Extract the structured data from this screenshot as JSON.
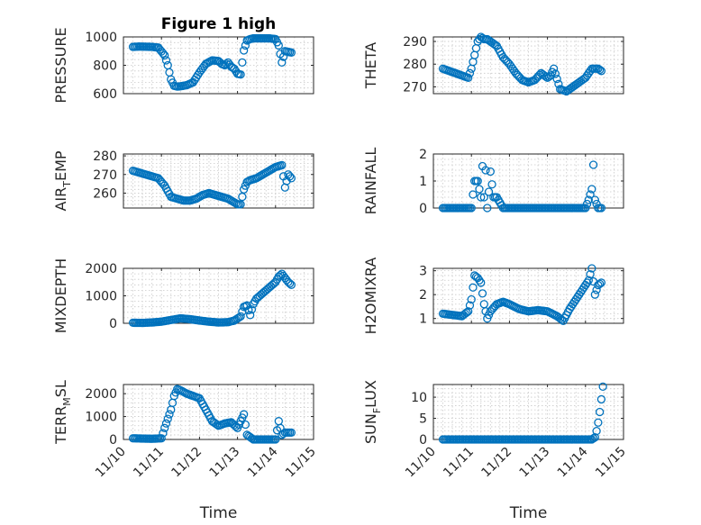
{
  "colors": {
    "marker": "#0072BD",
    "axis": "#262626",
    "grid": "#c9c9c9"
  },
  "chart_data": [
    {
      "type": "scatter",
      "title": "Figure 1 high",
      "xlabel": "",
      "ylabel": "PRESSURE",
      "xlim": [
        "11/10",
        "11/15"
      ],
      "ylim": [
        600,
        1000
      ],
      "yticks": [
        600,
        800,
        1000
      ],
      "grid": true,
      "x": [
        "11/10 06:00",
        "11/10 10:00",
        "11/10 14:00",
        "11/10 18:00",
        "11/10 22:00",
        "11/11 02:00",
        "11/11 04:00",
        "11/11 06:00",
        "11/11 08:00",
        "11/11 10:00",
        "11/11 12:00",
        "11/11 16:00",
        "11/11 20:00",
        "11/12 00:00",
        "11/12 04:00",
        "11/12 08:00",
        "11/12 12:00",
        "11/12 14:00",
        "11/12 16:00",
        "11/12 18:00",
        "11/12 20:00",
        "11/12 22:00",
        "11/13 00:00",
        "11/13 02:00",
        "11/13 04:00",
        "11/13 06:00",
        "11/13 08:00",
        "11/13 10:00",
        "11/13 12:00",
        "11/13 16:00",
        "11/13 20:00",
        "11/14 00:00",
        "11/14 02:00",
        "11/14 04:00",
        "11/14 06:00",
        "11/14 08:00",
        "11/14 10:00"
      ],
      "values": [
        930,
        932,
        931,
        930,
        925,
        870,
        800,
        700,
        655,
        650,
        652,
        660,
        680,
        750,
        810,
        835,
        830,
        810,
        800,
        820,
        790,
        775,
        740,
        735,
        905,
        975,
        985,
        990,
        990,
        990,
        990,
        985,
        940,
        820,
        900,
        895,
        890
      ]
    },
    {
      "type": "scatter",
      "title": "",
      "xlabel": "",
      "ylabel": "THETA",
      "xlim": [
        "11/10",
        "11/15"
      ],
      "ylim": [
        267,
        292
      ],
      "yticks": [
        270,
        280,
        290
      ],
      "grid": true,
      "x": [
        "11/10 06:00",
        "11/10 10:00",
        "11/10 14:00",
        "11/10 18:00",
        "11/10 22:00",
        "11/11 00:00",
        "11/11 02:00",
        "11/11 04:00",
        "11/11 06:00",
        "11/11 08:00",
        "11/11 10:00",
        "11/11 12:00",
        "11/11 16:00",
        "11/11 20:00",
        "11/12 00:00",
        "11/12 04:00",
        "11/12 08:00",
        "11/12 12:00",
        "11/12 16:00",
        "11/12 20:00",
        "11/13 00:00",
        "11/13 02:00",
        "11/13 04:00",
        "11/13 08:00",
        "11/13 12:00",
        "11/13 16:00",
        "11/13 20:00",
        "11/14 00:00",
        "11/14 04:00",
        "11/14 08:00",
        "11/14 10:00"
      ],
      "values": [
        278,
        277,
        276,
        275,
        274,
        278,
        284,
        290,
        292,
        291,
        291,
        290,
        288,
        283,
        280,
        276,
        273,
        272,
        273,
        276,
        274,
        275,
        278,
        269,
        268,
        270,
        272,
        274,
        278,
        278,
        277
      ]
    },
    {
      "type": "scatter",
      "title": "",
      "xlabel": "",
      "ylabel": "AIR_TEMP",
      "xlim": [
        "11/10",
        "11/15"
      ],
      "ylim": [
        252,
        281
      ],
      "yticks": [
        260,
        270,
        280
      ],
      "grid": true,
      "x": [
        "11/10 06:00",
        "11/10 10:00",
        "11/10 14:00",
        "11/10 18:00",
        "11/10 22:00",
        "11/11 02:00",
        "11/11 06:00",
        "11/11 10:00",
        "11/11 14:00",
        "11/11 18:00",
        "11/11 22:00",
        "11/12 02:00",
        "11/12 06:00",
        "11/12 10:00",
        "11/12 14:00",
        "11/12 18:00",
        "11/12 22:00",
        "11/13 00:00",
        "11/13 02:00",
        "11/13 04:00",
        "11/13 06:00",
        "11/13 08:00",
        "11/13 12:00",
        "11/13 16:00",
        "11/13 20:00",
        "11/14 00:00",
        "11/14 04:00",
        "11/14 06:00",
        "11/14 08:00",
        "11/14 10:00"
      ],
      "values": [
        272,
        271,
        270,
        269,
        268,
        264,
        258,
        257,
        256,
        256,
        257,
        259,
        260,
        259,
        258,
        257,
        255,
        254,
        254,
        262,
        266,
        267,
        268,
        270,
        272,
        274,
        275,
        263,
        270,
        268
      ]
    },
    {
      "type": "scatter",
      "title": "",
      "xlabel": "",
      "ylabel": "RAINFALL",
      "xlim": [
        "11/10",
        "11/15"
      ],
      "ylim": [
        0,
        2
      ],
      "yticks": [
        0,
        1,
        2
      ],
      "grid": true,
      "x": [
        "11/10 06:00",
        "11/10 12:00",
        "11/10 18:00",
        "11/11 00:00",
        "11/11 02:00",
        "11/11 04:00",
        "11/11 06:00",
        "11/11 07:00",
        "11/11 08:00",
        "11/11 09:00",
        "11/11 10:00",
        "11/11 11:00",
        "11/11 12:00",
        "11/11 14:00",
        "11/11 16:00",
        "11/11 20:00",
        "11/12 00:00",
        "11/12 06:00",
        "11/12 12:00",
        "11/12 18:00",
        "11/13 00:00",
        "11/13 06:00",
        "11/13 12:00",
        "11/13 18:00",
        "11/14 00:00",
        "11/14 02:00",
        "11/14 04:00",
        "11/14 05:00",
        "11/14 06:00",
        "11/14 08:00",
        "11/14 10:00"
      ],
      "values": [
        0,
        0,
        0,
        0,
        1,
        1,
        0.4,
        1.55,
        0.4,
        1.4,
        0,
        0.6,
        1.35,
        0.4,
        0.4,
        0,
        0,
        0,
        0,
        0,
        0,
        0,
        0,
        0,
        0,
        0.3,
        0.7,
        1.6,
        0.3,
        0,
        0
      ]
    },
    {
      "type": "scatter",
      "title": "",
      "xlabel": "",
      "ylabel": "MIXDEPTH",
      "xlim": [
        "11/10",
        "11/15"
      ],
      "ylim": [
        0,
        2000
      ],
      "yticks": [
        0,
        1000,
        2000
      ],
      "grid": true,
      "x": [
        "11/10 06:00",
        "11/10 12:00",
        "11/10 18:00",
        "11/11 00:00",
        "11/11 06:00",
        "11/11 12:00",
        "11/11 18:00",
        "11/12 00:00",
        "11/12 06:00",
        "11/12 12:00",
        "11/12 18:00",
        "11/12 22:00",
        "11/13 02:00",
        "11/13 04:00",
        "11/13 06:00",
        "11/13 08:00",
        "11/13 10:00",
        "11/13 12:00",
        "11/13 16:00",
        "11/13 20:00",
        "11/14 00:00",
        "11/14 02:00",
        "11/14 04:00",
        "11/14 06:00",
        "11/14 08:00",
        "11/14 10:00"
      ],
      "values": [
        20,
        15,
        30,
        60,
        120,
        180,
        150,
        100,
        60,
        30,
        40,
        100,
        250,
        600,
        650,
        300,
        700,
        900,
        1100,
        1300,
        1500,
        1700,
        1800,
        1650,
        1500,
        1400
      ]
    },
    {
      "type": "scatter",
      "title": "",
      "xlabel": "",
      "ylabel": "H2OMIXRA",
      "xlim": [
        "11/10",
        "11/15"
      ],
      "ylim": [
        0.8,
        3.1
      ],
      "yticks": [
        1,
        2,
        3
      ],
      "grid": true,
      "x": [
        "11/10 06:00",
        "11/10 12:00",
        "11/10 18:00",
        "11/10 22:00",
        "11/11 00:00",
        "11/11 02:00",
        "11/11 04:00",
        "11/11 06:00",
        "11/11 08:00",
        "11/11 10:00",
        "11/11 12:00",
        "11/11 16:00",
        "11/11 20:00",
        "11/12 00:00",
        "11/12 06:00",
        "11/12 12:00",
        "11/12 18:00",
        "11/13 00:00",
        "11/13 06:00",
        "11/13 10:00",
        "11/13 14:00",
        "11/13 18:00",
        "11/13 22:00",
        "11/14 02:00",
        "11/14 04:00",
        "11/14 06:00",
        "11/14 08:00",
        "11/14 10:00"
      ],
      "values": [
        1.2,
        1.15,
        1.1,
        1.3,
        1.8,
        2.8,
        2.7,
        2.5,
        1.6,
        1.0,
        1.3,
        1.6,
        1.7,
        1.6,
        1.4,
        1.3,
        1.35,
        1.3,
        1.1,
        0.9,
        1.4,
        1.8,
        2.2,
        2.6,
        3.1,
        2.0,
        2.4,
        2.5
      ]
    },
    {
      "type": "scatter",
      "title": "",
      "xlabel": "Time",
      "ylabel": "TERR_MSL",
      "xlim": [
        "11/10",
        "11/15"
      ],
      "ylim": [
        0,
        2400
      ],
      "yticks": [
        0,
        1000,
        2000
      ],
      "grid": true,
      "xticklabels": [
        "11/10",
        "11/11",
        "11/12",
        "11/13",
        "11/14",
        "11/15"
      ],
      "x": [
        "11/10 06:00",
        "11/10 12:00",
        "11/10 18:00",
        "11/11 00:00",
        "11/11 02:00",
        "11/11 04:00",
        "11/11 06:00",
        "11/11 08:00",
        "11/11 10:00",
        "11/11 12:00",
        "11/11 16:00",
        "11/11 20:00",
        "11/12 00:00",
        "11/12 04:00",
        "11/12 08:00",
        "11/12 12:00",
        "11/12 16:00",
        "11/12 20:00",
        "11/13 00:00",
        "11/13 02:00",
        "11/13 04:00",
        "11/13 06:00",
        "11/13 10:00",
        "11/13 16:00",
        "11/13 20:00",
        "11/14 00:00",
        "11/14 02:00",
        "11/14 04:00",
        "11/14 06:00",
        "11/14 10:00"
      ],
      "values": [
        50,
        40,
        30,
        50,
        500,
        900,
        1300,
        1900,
        2200,
        2150,
        2000,
        1900,
        1800,
        1300,
        800,
        600,
        700,
        750,
        500,
        800,
        1100,
        200,
        0,
        0,
        0,
        0,
        800,
        200,
        300,
        300
      ]
    },
    {
      "type": "scatter",
      "title": "",
      "xlabel": "Time",
      "ylabel": "SUN_FLUX",
      "xlim": [
        "11/10",
        "11/15"
      ],
      "ylim": [
        0,
        13
      ],
      "yticks": [
        0,
        5,
        10
      ],
      "grid": true,
      "xticklabels": [
        "11/10",
        "11/11",
        "11/12",
        "11/13",
        "11/14",
        "11/15"
      ],
      "x": [
        "11/10 06:00",
        "11/10 12:00",
        "11/10 18:00",
        "11/11 00:00",
        "11/11 06:00",
        "11/11 12:00",
        "11/11 18:00",
        "11/12 00:00",
        "11/12 06:00",
        "11/12 12:00",
        "11/12 18:00",
        "11/13 00:00",
        "11/13 06:00",
        "11/13 12:00",
        "11/13 18:00",
        "11/14 00:00",
        "11/14 04:00",
        "11/14 06:00",
        "11/14 07:00",
        "11/14 08:00",
        "11/14 09:00",
        "11/14 10:00",
        "11/14 11:00"
      ],
      "values": [
        0,
        0,
        0,
        0,
        0,
        0,
        0,
        0,
        0,
        0,
        0,
        0,
        0,
        0,
        0,
        0,
        0,
        0.5,
        2,
        4,
        6.5,
        9.5,
        12.5
      ]
    }
  ]
}
